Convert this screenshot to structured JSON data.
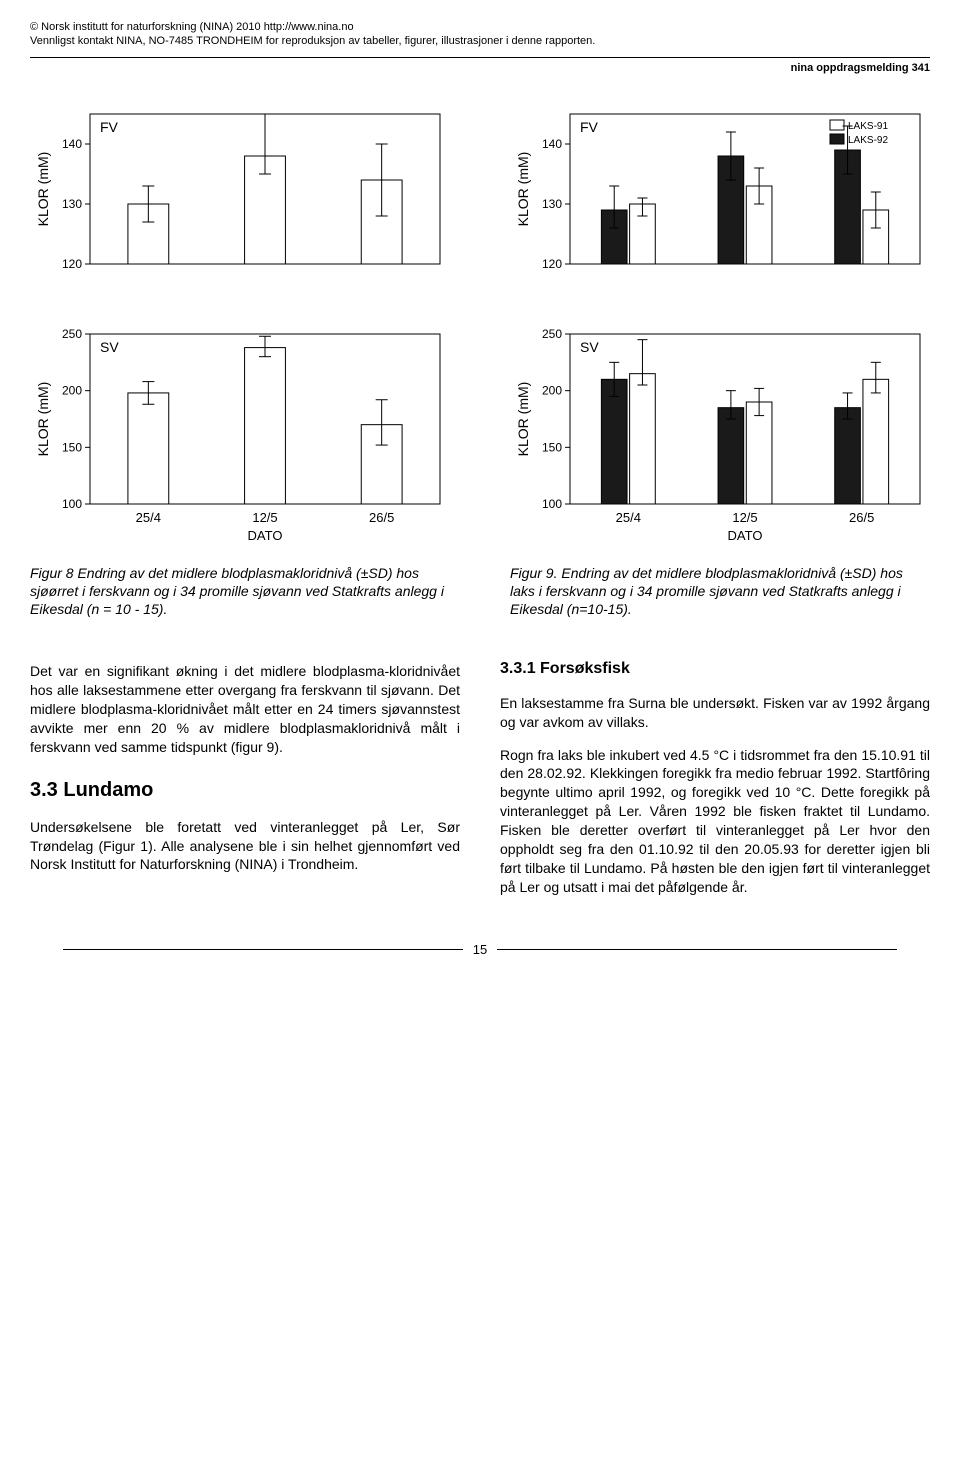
{
  "copyright": {
    "line1": "© Norsk institutt for naturforskning (NINA) 2010 http://www.nina.no",
    "line2": "Vennligst kontakt NINA, NO-7485 TRONDHEIM for reproduksjon av tabeller, figurer, illustrasjoner i denne rapporten."
  },
  "header_right": "nina oppdragsmelding 341",
  "axis_y_label": "KLOR (mM)",
  "axis_x_label": "DATO",
  "legend_items": [
    "LAKS-91",
    "LAKS-92"
  ],
  "chart_colors": {
    "bar_white_fill": "#ffffff",
    "bar_black_fill": "#1a1a1a",
    "border": "#000000",
    "grid": "#000000",
    "bg": "#ffffff"
  },
  "chart_fv_left": {
    "label": "FV",
    "ylim": [
      120,
      145
    ],
    "yticks": [
      120,
      130,
      140
    ],
    "categories": [
      "25/4",
      "12/5",
      "26/5"
    ],
    "bars": [
      {
        "value": 130,
        "err_low": 127,
        "err_high": 133,
        "color": "#ffffff"
      },
      {
        "value": 138,
        "err_low": 135,
        "err_high": 145,
        "color": "#ffffff"
      },
      {
        "value": 134,
        "err_low": 128,
        "err_high": 140,
        "color": "#ffffff"
      }
    ]
  },
  "chart_fv_right": {
    "label": "FV",
    "ylim": [
      120,
      145
    ],
    "yticks": [
      120,
      130,
      140
    ],
    "categories": [
      "25/4",
      "12/5",
      "26/5"
    ],
    "groups": [
      [
        {
          "value": 129,
          "err_low": 126,
          "err_high": 133,
          "color": "#1a1a1a"
        },
        {
          "value": 130,
          "err_low": 128,
          "err_high": 131,
          "color": "#ffffff"
        }
      ],
      [
        {
          "value": 138,
          "err_low": 134,
          "err_high": 142,
          "color": "#1a1a1a"
        },
        {
          "value": 133,
          "err_low": 130,
          "err_high": 136,
          "color": "#ffffff"
        }
      ],
      [
        {
          "value": 139,
          "err_low": 135,
          "err_high": 143,
          "color": "#1a1a1a"
        },
        {
          "value": 129,
          "err_low": 126,
          "err_high": 132,
          "color": "#ffffff"
        }
      ]
    ]
  },
  "chart_sv_left": {
    "label": "SV",
    "ylim": [
      100,
      250
    ],
    "yticks": [
      100,
      150,
      200,
      250
    ],
    "categories": [
      "25/4",
      "12/5",
      "26/5"
    ],
    "bars": [
      {
        "value": 198,
        "err_low": 188,
        "err_high": 208,
        "color": "#ffffff"
      },
      {
        "value": 238,
        "err_low": 230,
        "err_high": 248,
        "color": "#ffffff"
      },
      {
        "value": 170,
        "err_low": 152,
        "err_high": 192,
        "color": "#ffffff"
      }
    ]
  },
  "chart_sv_right": {
    "label": "SV",
    "ylim": [
      100,
      250
    ],
    "yticks": [
      100,
      150,
      200,
      250
    ],
    "categories": [
      "25/4",
      "12/5",
      "26/5"
    ],
    "groups": [
      [
        {
          "value": 210,
          "err_low": 195,
          "err_high": 225,
          "color": "#1a1a1a"
        },
        {
          "value": 215,
          "err_low": 205,
          "err_high": 245,
          "color": "#ffffff"
        }
      ],
      [
        {
          "value": 185,
          "err_low": 175,
          "err_high": 200,
          "color": "#1a1a1a"
        },
        {
          "value": 190,
          "err_low": 178,
          "err_high": 202,
          "color": "#ffffff"
        }
      ],
      [
        {
          "value": 185,
          "err_low": 175,
          "err_high": 198,
          "color": "#1a1a1a"
        },
        {
          "value": 210,
          "err_low": 198,
          "err_high": 225,
          "color": "#ffffff"
        }
      ]
    ]
  },
  "captions": {
    "fig8": "Figur 8 Endring av det midlere blodplasmakloridnivå (±SD) hos sjøørret i ferskvann og i 34 promille sjøvann ved Statkrafts anlegg i Eikesdal (n = 10 - 15).",
    "fig9": "Figur 9. Endring av det midlere blodplasmakloridnivå (±SD) hos laks i ferskvann og i 34 promille sjøvann ved Statkrafts anlegg i Eikesdal (n=10-15)."
  },
  "body": {
    "left_p1": "Det var en signifikant økning i det midlere blodplasma-kloridnivået hos alle laksestammene etter overgang fra ferskvann til sjøvann. Det midlere blodplasma-kloridnivået målt etter en 24 timers sjøvannstest avvikte mer enn 20 % av midlere blodplasmakloridnivå målt i ferskvann ved samme tidspunkt (figur 9).",
    "heading33": "3.3 Lundamo",
    "left_p2": "Undersøkelsene ble foretatt ved vinteranlegget på Ler, Sør Trøndelag (Figur 1). Alle analysene ble i sin helhet gjennomført ved Norsk Institutt for Naturforskning (NINA) i Trondheim.",
    "heading331": "3.3.1 Forsøksfisk",
    "right_p1": "En laksestamme fra Surna ble undersøkt. Fisken var av 1992 årgang og var avkom av villaks.",
    "right_p2": "Rogn fra laks ble inkubert ved 4.5 °C i tidsrommet fra den 15.10.91 til den 28.02.92. Klekkingen foregikk fra medio februar 1992. Startfôring begynte ultimo april 1992, og foregikk ved 10 °C. Dette foregikk på vinteranlegget på Ler. Våren 1992 ble fisken fraktet til Lundamo. Fisken ble deretter overført til vinteranlegget på Ler hvor den oppholdt seg fra den 01.10.92 til den 20.05.93 for deretter igjen bli ført tilbake til Lundamo. På høsten ble den igjen ført til vinteranlegget på Ler og utsatt i mai det påfølgende år."
  },
  "page_number": "15"
}
